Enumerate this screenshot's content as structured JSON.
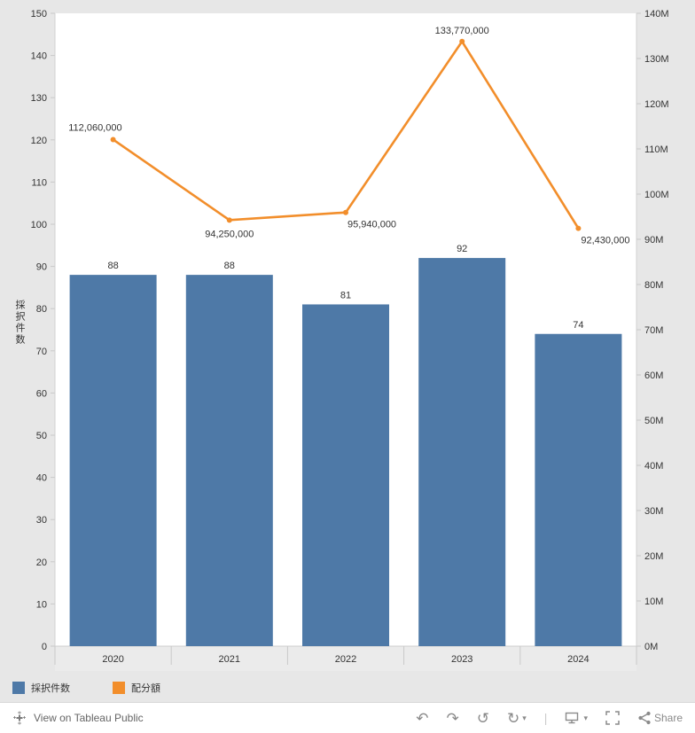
{
  "chart_data": {
    "type": "combo",
    "categories": [
      "2020",
      "2021",
      "2022",
      "2023",
      "2024"
    ],
    "series": [
      {
        "name": "採択件数",
        "type": "bar",
        "axis": "left",
        "color": "#4e79a7",
        "values": [
          88,
          88,
          81,
          92,
          74
        ],
        "labels": [
          "88",
          "88",
          "81",
          "92",
          "74"
        ]
      },
      {
        "name": "配分額",
        "type": "line",
        "axis": "right",
        "color": "#f28e2b",
        "values": [
          112060000,
          94250000,
          95940000,
          133770000,
          92430000
        ],
        "labels": [
          "112,060,000",
          "94,250,000",
          "95,940,000",
          "133,770,000",
          "92,430,000"
        ]
      }
    ],
    "left_axis": {
      "title": "採択件数",
      "min": 0,
      "max": 150,
      "tick_labels": [
        "0",
        "10",
        "20",
        "30",
        "40",
        "50",
        "60",
        "70",
        "80",
        "90",
        "100",
        "110",
        "120",
        "130",
        "140",
        "150"
      ]
    },
    "right_axis": {
      "min": 0,
      "max": 140000000,
      "tick_labels": [
        "0M",
        "10M",
        "20M",
        "30M",
        "40M",
        "50M",
        "60M",
        "70M",
        "80M",
        "90M",
        "100M",
        "110M",
        "120M",
        "130M",
        "140M"
      ]
    },
    "legend": [
      {
        "label": "採択件数",
        "color": "#4e79a7"
      },
      {
        "label": "配分額",
        "color": "#f28e2b"
      }
    ],
    "grid": false,
    "legend_position": "bottom-left"
  },
  "toolbar": {
    "view_label": "View on Tableau Public",
    "share_label": "Share",
    "icons": {
      "undo": "↶",
      "redo": "↷",
      "revert": "↺",
      "refresh": "↻",
      "caret": "▾",
      "separator": "|"
    }
  }
}
